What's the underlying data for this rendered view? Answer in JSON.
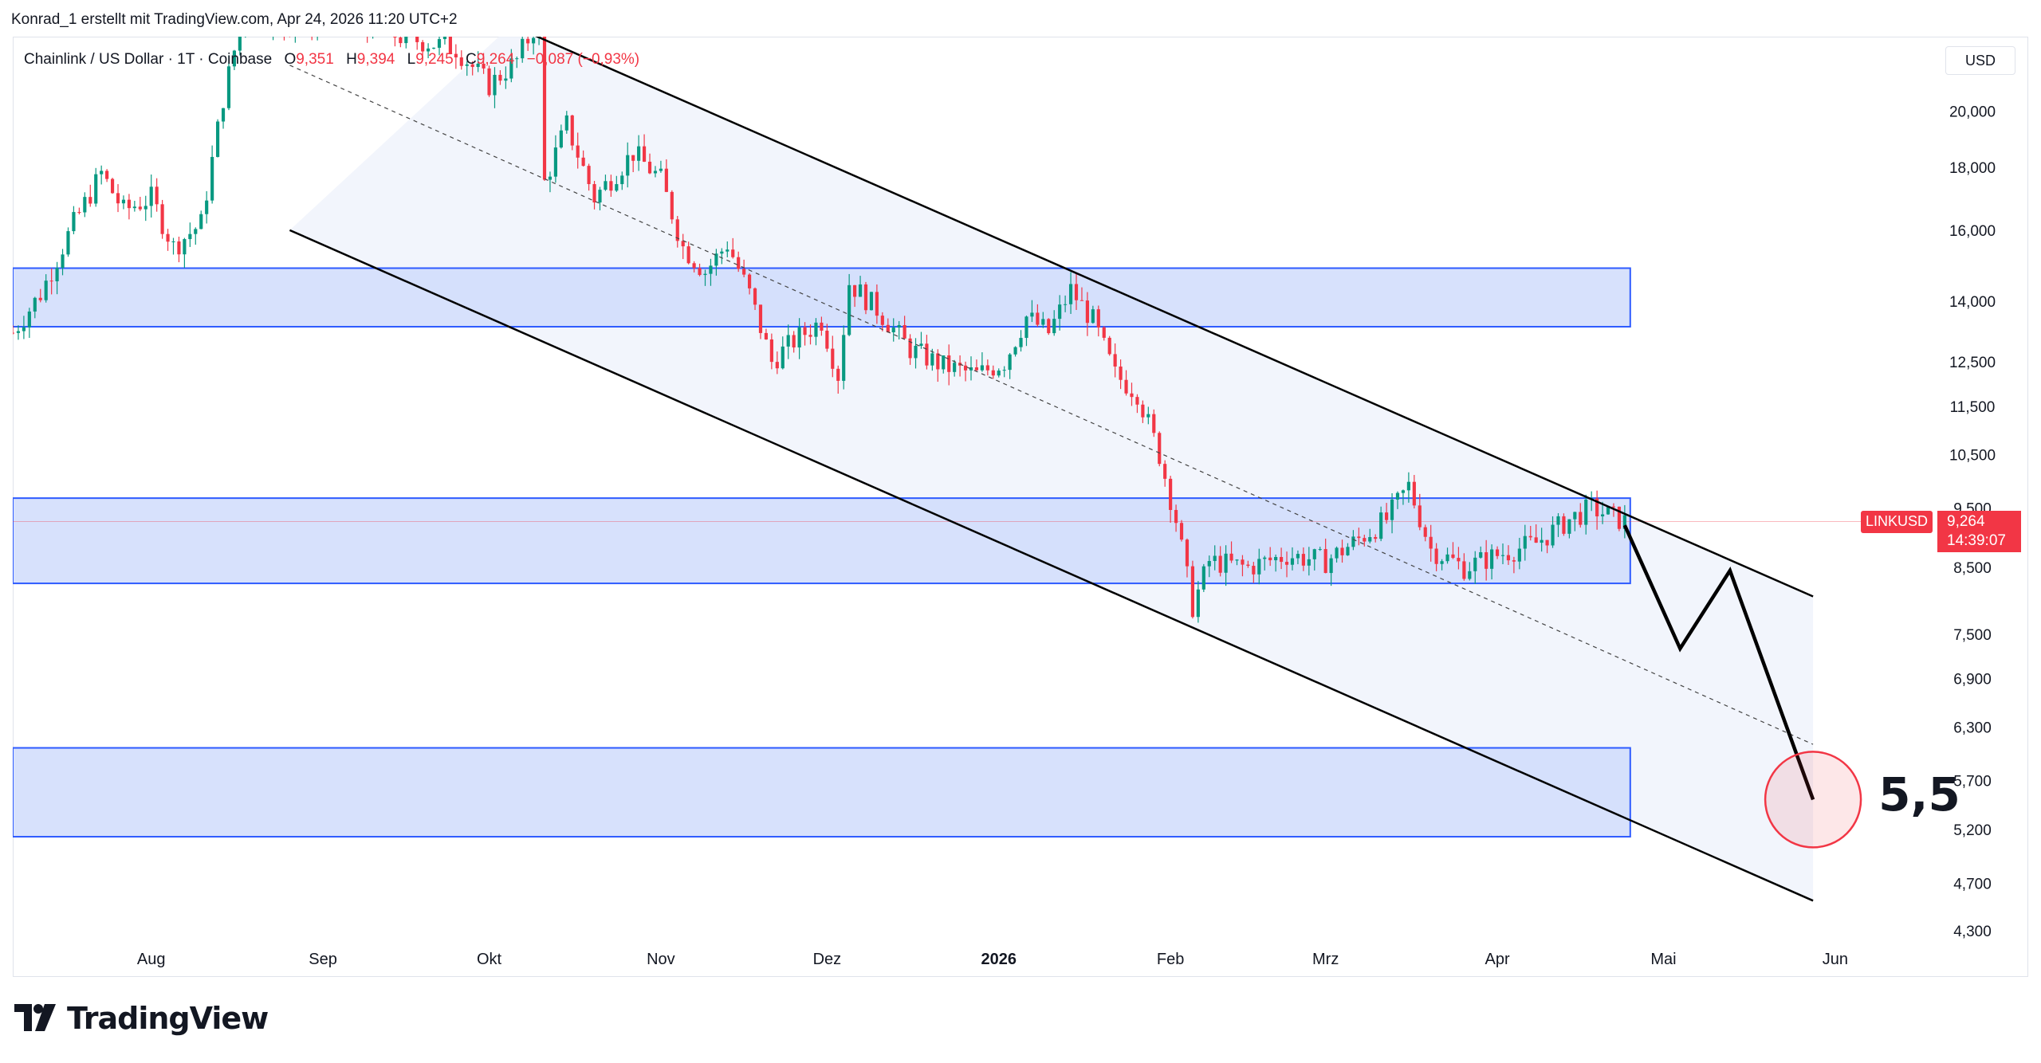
{
  "header": {
    "attribution": "Konrad_1 erstellt mit TradingView.com, Apr 24, 2026 11:20 UTC+2"
  },
  "legend": {
    "symbol_name": "Chainlink / US Dollar · 1T · Coinbase",
    "open_label": "O",
    "open": "9,351",
    "high_label": "H",
    "high": "9,394",
    "low_label": "L",
    "low": "9,245",
    "close_label": "C",
    "close": "9,264",
    "change": "−0,087 (−0,93%)"
  },
  "toolbar": {
    "currency": "USD"
  },
  "price_badge": {
    "symbol": "LINKUSD",
    "price": "9,264",
    "countdown": "14:39:07"
  },
  "annotation": {
    "target_text": "5,5"
  },
  "footer": {
    "brand": "TradingView"
  },
  "colors": {
    "up": "#089981",
    "down": "#f23645",
    "zone_fill": "#d0dcfc",
    "zone_border": "#2e5bff",
    "channel": "#000000",
    "target_circle": "#f23645"
  },
  "chart_data": {
    "type": "candlestick",
    "symbol": "LINKUSD",
    "y_scale": "log",
    "ylim": [
      4100,
      23000
    ],
    "y_ticks": [
      {
        "v": 20000,
        "label": "20,000"
      },
      {
        "v": 18000,
        "label": "18,000"
      },
      {
        "v": 16000,
        "label": "16,000"
      },
      {
        "v": 14000,
        "label": "14,000"
      },
      {
        "v": 12500,
        "label": "12,500"
      },
      {
        "v": 11500,
        "label": "11,500"
      },
      {
        "v": 10500,
        "label": "10,500"
      },
      {
        "v": 9500,
        "label": "9,500"
      },
      {
        "v": 8500,
        "label": "8,500"
      },
      {
        "v": 7500,
        "label": "7,500"
      },
      {
        "v": 6900,
        "label": "6,900"
      },
      {
        "v": 6300,
        "label": "6,300"
      },
      {
        "v": 5700,
        "label": "5,700"
      },
      {
        "v": 5200,
        "label": "5,200"
      },
      {
        "v": 4700,
        "label": "4,700"
      },
      {
        "v": 4300,
        "label": "4,300"
      }
    ],
    "x_range": [
      "2025-07-07",
      "2026-06-18"
    ],
    "x_ticks": [
      {
        "date": "2025-08-01",
        "label": "Aug",
        "bold": false
      },
      {
        "date": "2025-09-01",
        "label": "Sep",
        "bold": false
      },
      {
        "date": "2025-10-01",
        "label": "Okt",
        "bold": false
      },
      {
        "date": "2025-11-01",
        "label": "Nov",
        "bold": false
      },
      {
        "date": "2025-12-01",
        "label": "Dez",
        "bold": false
      },
      {
        "date": "2026-01-01",
        "label": "2026",
        "bold": true
      },
      {
        "date": "2026-02-01",
        "label": "Feb",
        "bold": false
      },
      {
        "date": "2026-03-01",
        "label": "Mrz",
        "bold": false
      },
      {
        "date": "2026-04-01",
        "label": "Apr",
        "bold": false
      },
      {
        "date": "2026-05-01",
        "label": "Mai",
        "bold": false
      },
      {
        "date": "2026-06-01",
        "label": "Jun",
        "bold": false
      }
    ],
    "close_path": [
      [
        "2025-07-07",
        13200
      ],
      [
        "2025-07-12",
        14200
      ],
      [
        "2025-07-18",
        16200
      ],
      [
        "2025-07-23",
        17800
      ],
      [
        "2025-07-27",
        16600
      ],
      [
        "2025-08-01",
        17000
      ],
      [
        "2025-08-05",
        15500
      ],
      [
        "2025-08-10",
        16200
      ],
      [
        "2025-08-14",
        20500
      ],
      [
        "2025-08-18",
        24500
      ],
      [
        "2025-08-25",
        23500
      ],
      [
        "2025-09-05",
        23800
      ],
      [
        "2025-09-15",
        23000
      ],
      [
        "2025-09-25",
        22500
      ],
      [
        "2025-10-01",
        21000
      ],
      [
        "2025-10-06",
        22000
      ],
      [
        "2025-10-10",
        23800
      ],
      [
        "2025-10-11",
        17500
      ],
      [
        "2025-10-15",
        19500
      ],
      [
        "2025-10-20",
        17000
      ],
      [
        "2025-10-27",
        18500
      ],
      [
        "2025-11-01",
        17600
      ],
      [
        "2025-11-05",
        15500
      ],
      [
        "2025-11-09",
        14800
      ],
      [
        "2025-11-13",
        15600
      ],
      [
        "2025-11-17",
        14200
      ],
      [
        "2025-11-21",
        12500
      ],
      [
        "2025-11-25",
        13000
      ],
      [
        "2025-11-30",
        13500
      ],
      [
        "2025-12-03",
        12200
      ],
      [
        "2025-12-05",
        14500
      ],
      [
        "2025-12-10",
        13800
      ],
      [
        "2025-12-16",
        12800
      ],
      [
        "2025-12-22",
        12400
      ],
      [
        "2025-12-28",
        12200
      ],
      [
        "2026-01-02",
        12500
      ],
      [
        "2026-01-06",
        13600
      ],
      [
        "2026-01-10",
        13200
      ],
      [
        "2026-01-14",
        14300
      ],
      [
        "2026-01-18",
        13500
      ],
      [
        "2026-01-22",
        12200
      ],
      [
        "2026-01-26",
        11800
      ],
      [
        "2026-01-30",
        10500
      ],
      [
        "2026-02-02",
        9300
      ],
      [
        "2026-02-05",
        7900
      ],
      [
        "2026-02-08",
        8600
      ],
      [
        "2026-02-15",
        8500
      ],
      [
        "2026-02-22",
        8700
      ],
      [
        "2026-03-01",
        8600
      ],
      [
        "2026-03-06",
        8900
      ],
      [
        "2026-03-12",
        9300
      ],
      [
        "2026-03-16",
        9900
      ],
      [
        "2026-03-20",
        8800
      ],
      [
        "2026-03-26",
        8500
      ],
      [
        "2026-04-01",
        8700
      ],
      [
        "2026-04-08",
        8900
      ],
      [
        "2026-04-14",
        9300
      ],
      [
        "2026-04-18",
        9500
      ],
      [
        "2026-04-24",
        9264
      ]
    ],
    "zones": [
      {
        "from": "2025-07-07",
        "to": "2026-04-25",
        "top": 14900,
        "bottom": 13350
      },
      {
        "from": "2025-07-07",
        "to": "2026-04-25",
        "top": 9680,
        "bottom": 8250
      },
      {
        "from": "2025-07-07",
        "to": "2026-04-25",
        "top": 6060,
        "bottom": 5130
      }
    ],
    "channel": {
      "upper": [
        [
          "2025-10-05",
          23500
        ],
        [
          "2026-05-28",
          8050
        ]
      ],
      "lower": [
        [
          "2025-08-26",
          16000
        ],
        [
          "2026-05-28",
          4550
        ]
      ],
      "middle_dashed": [
        [
          "2025-08-26",
          21800
        ],
        [
          "2026-05-28",
          6100
        ]
      ]
    },
    "projection": [
      [
        "2026-04-24",
        9200
      ],
      [
        "2026-05-04",
        7300
      ],
      [
        "2026-05-13",
        8450
      ],
      [
        "2026-05-28",
        5500
      ]
    ],
    "target": {
      "date": "2026-05-28",
      "value": 5500,
      "label": "5,5"
    },
    "last_price": 9264
  }
}
